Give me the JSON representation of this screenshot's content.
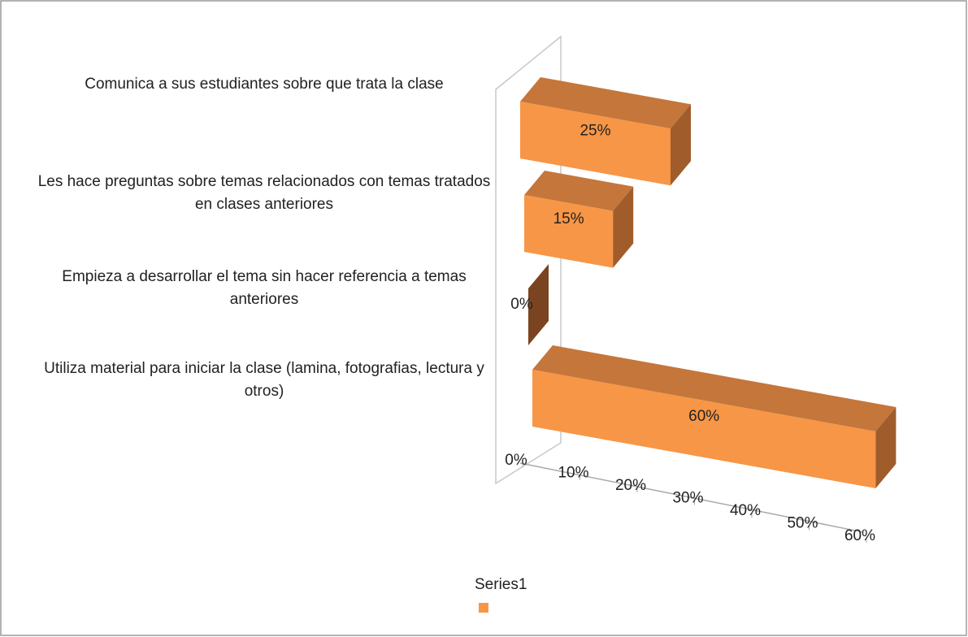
{
  "chart_data": {
    "type": "bar3d",
    "categories": [
      "Comunica a sus estudiantes sobre que trata la clase",
      "Les hace preguntas sobre temas relacionados con temas tratados en clases anteriores",
      "Empieza a desarrollar el tema sin hacer referencia a temas anteriores",
      "Utiliza material para iniciar la clase (lamina, fotografias, lectura y otros)"
    ],
    "series": [
      {
        "name": "Series1",
        "color": "#f79646",
        "values": [
          25,
          15,
          0,
          60
        ],
        "value_labels": [
          "25%",
          "15%",
          "0%",
          "60%"
        ]
      }
    ],
    "xlim": [
      0,
      60
    ],
    "xticks": [
      {
        "value": 0,
        "label": "0%"
      },
      {
        "value": 10,
        "label": "10%"
      },
      {
        "value": 20,
        "label": "20%"
      },
      {
        "value": 30,
        "label": "30%"
      },
      {
        "value": 40,
        "label": "40%"
      },
      {
        "value": 50,
        "label": "50%"
      },
      {
        "value": 60,
        "label": "60%"
      }
    ],
    "legend": "bottom"
  }
}
